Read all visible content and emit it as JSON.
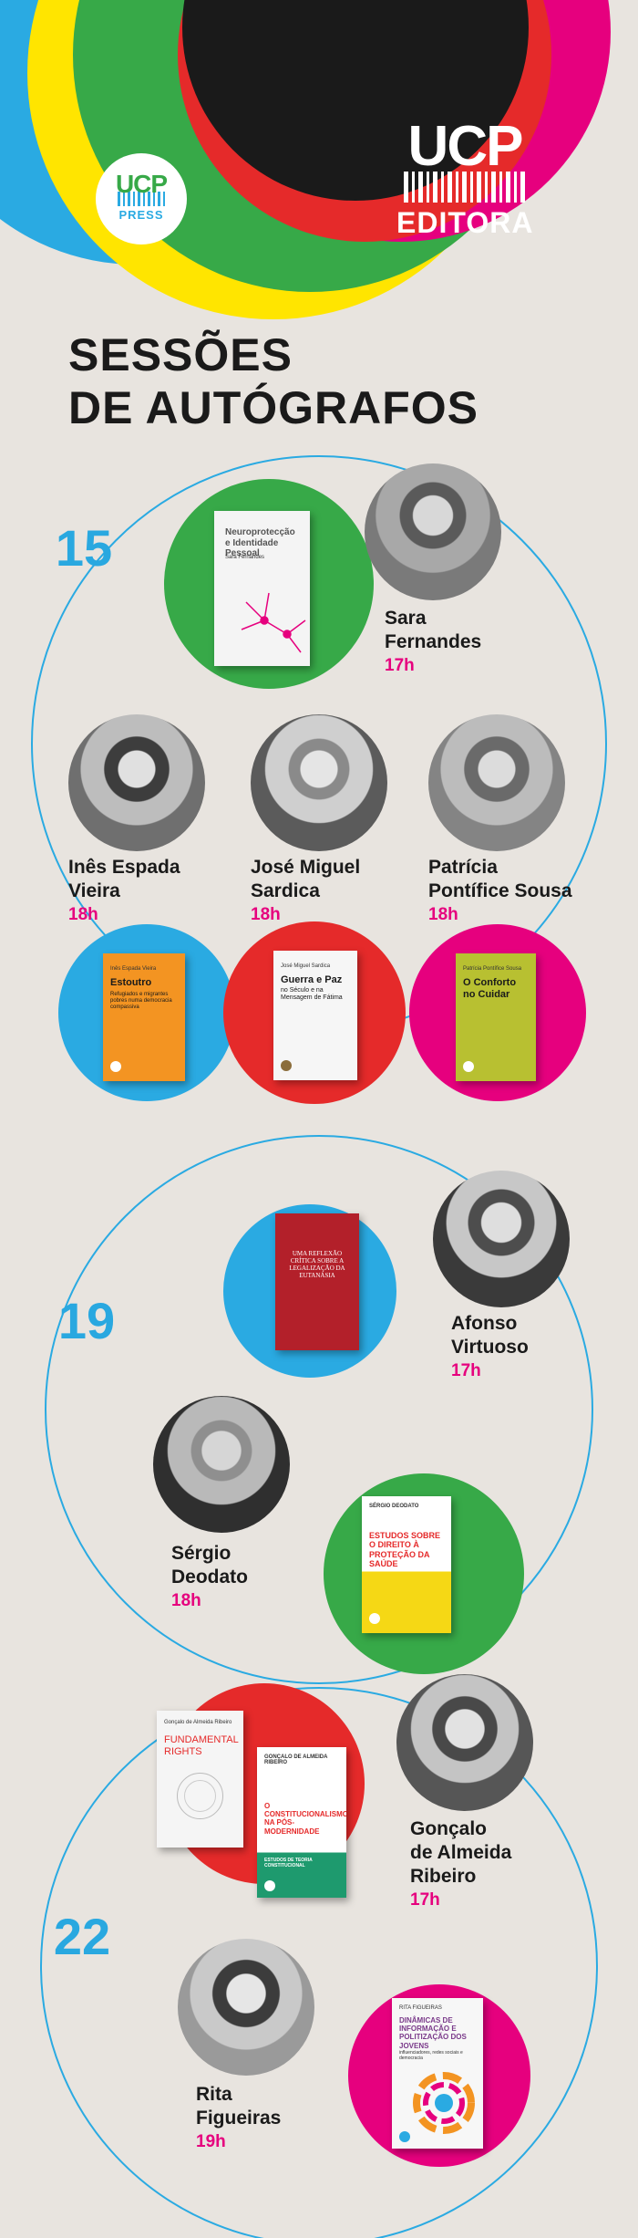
{
  "logos": {
    "press": {
      "line1": "UCP",
      "line2": "PRESS"
    },
    "editora": {
      "line1": "UCP",
      "line2": "EDITORA"
    }
  },
  "colors": {
    "cyan": "#2aaae2",
    "green": "#37a948",
    "black": "#1a1a1a",
    "magenta": "#e6007e",
    "red": "#e52a2a",
    "yellow": "#ffe500",
    "time": "#e6007e",
    "day": "#29a8e0"
  },
  "title": {
    "line1": "SESSÕES",
    "line2": "DE AUTÓGRAFOS"
  },
  "sessions": [
    {
      "day": "15",
      "signings": [
        {
          "name1": "Sara",
          "name2": "Fernandes",
          "time": "17h",
          "book": {
            "author": "Sara Fernandes",
            "title": "Neuroprotecção e Identidade Pessoal"
          }
        },
        {
          "name1": "Inês Espada",
          "name2": "Vieira",
          "time": "18h",
          "book": {
            "author": "Inês Espada Vieira",
            "title": "Estoutro",
            "subtitle": "Refugiados e migrantes pobres numa democracia compassiva"
          }
        },
        {
          "name1": "José Miguel",
          "name2": "Sardica",
          "time": "18h",
          "book": {
            "author": "José Miguel Sardica",
            "title": "Guerra e Paz",
            "subtitle": "no Século e na Mensagem de Fátima"
          }
        },
        {
          "name1": "Patrícia",
          "name2": "Pontífice Sousa",
          "time": "18h",
          "book": {
            "author": "Patrícia Pontífice Sousa",
            "title": "O Conforto no Cuidar"
          }
        }
      ]
    },
    {
      "day": "19",
      "signings": [
        {
          "name1": "Afonso",
          "name2": "Virtuoso",
          "time": "17h",
          "book": {
            "title": "UMA REFLEXÃO CRÍTICA SOBRE A LEGALIZAÇÃO DA EUTANÁSIA"
          }
        },
        {
          "name1": "Sérgio",
          "name2": "Deodato",
          "time": "18h",
          "book": {
            "author": "SÉRGIO DEODATO",
            "title": "ESTUDOS SOBRE O DIREITO À PROTEÇÃO DA SAÚDE"
          }
        }
      ]
    },
    {
      "day": "22",
      "signings": [
        {
          "name1": "Gonçalo",
          "name2": "de Almeida",
          "name3": "Ribeiro",
          "time": "17h",
          "books": [
            {
              "author": "Gonçalo de Almeida Ribeiro",
              "title": "FUNDAMENTAL RIGHTS"
            },
            {
              "author": "GONÇALO DE ALMEIDA RIBEIRO",
              "title": "O CONSTITUCIONALISMO NA PÓS-MODERNIDADE",
              "subtitle": "ESTUDOS DE TEORIA CONSTITUCIONAL"
            }
          ]
        },
        {
          "name1": "Rita",
          "name2": "Figueiras",
          "time": "19h",
          "book": {
            "author": "RITA FIGUEIRAS",
            "title": "DINÂMICAS DE INFORMAÇÃO E POLITIZAÇÃO DOS JOVENS",
            "subtitle": "influenciadores, redes sociais e democracia"
          }
        }
      ]
    }
  ]
}
